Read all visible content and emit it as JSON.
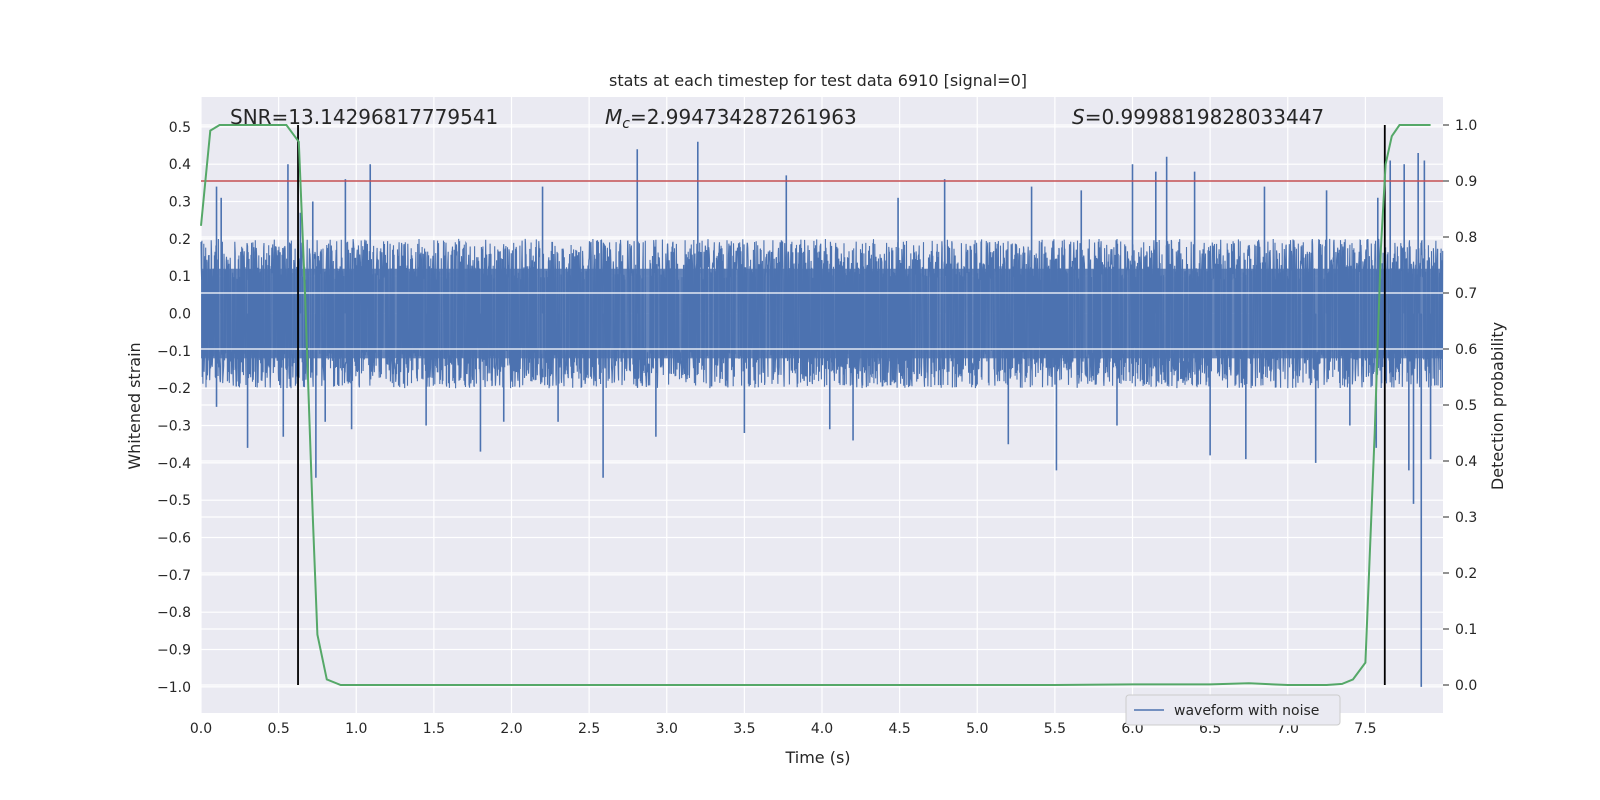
{
  "chart_data": {
    "type": "line",
    "title": "stats at each timestep for test data 6910 [signal=0]",
    "xlabel": "Time (s)",
    "ylabel": "Whitened strain",
    "y2label": "Detection probability",
    "xlim": [
      0.0,
      8.0
    ],
    "ylim": [
      -1.07,
      0.58
    ],
    "y2lim": [
      -0.05,
      1.05
    ],
    "xticks": [
      "0.0",
      "0.5",
      "1.0",
      "1.5",
      "2.0",
      "2.5",
      "3.0",
      "3.5",
      "4.0",
      "4.5",
      "5.0",
      "5.5",
      "6.0",
      "6.5",
      "7.0",
      "7.5"
    ],
    "yticks": [
      "0.5",
      "0.4",
      "0.3",
      "0.2",
      "0.1",
      "0.0",
      "−0.1",
      "−0.2",
      "−0.3",
      "−0.4",
      "−0.5",
      "−0.6",
      "−0.7",
      "−0.8",
      "−0.9",
      "−1.0"
    ],
    "y2ticks": [
      "1.0",
      "0.9",
      "0.8",
      "0.7",
      "0.6",
      "0.5",
      "0.4",
      "0.3",
      "0.2",
      "0.1",
      "0.0"
    ],
    "grid": true,
    "legend": {
      "placement": "lower-right",
      "entries": [
        "waveform with noise"
      ]
    },
    "annotations": {
      "snr": "SNR=13.14296817779541",
      "mc_symbol": "M",
      "mc_sub": "c",
      "mc_value": "=2.994734287261963",
      "s_symbol": "S",
      "s_value": "=0.9998819828033447"
    },
    "threshold": {
      "y2": 0.9,
      "color": "#c44e52"
    },
    "vlines": [
      0.625,
      7.625
    ],
    "colors": {
      "waveform": "#4c72b0",
      "probability": "#55a868",
      "vline": "#000000",
      "background": "#eaeaf2"
    },
    "waveform": {
      "name": "waveform with noise",
      "core_amplitude": 0.2,
      "spikes": [
        {
          "x": 0.1,
          "y": 0.34
        },
        {
          "x": 0.13,
          "y": 0.31
        },
        {
          "x": 0.1,
          "y": -0.25
        },
        {
          "x": 0.3,
          "y": -0.36
        },
        {
          "x": 0.56,
          "y": 0.4
        },
        {
          "x": 0.53,
          "y": -0.33
        },
        {
          "x": 0.64,
          "y": 0.27
        },
        {
          "x": 0.74,
          "y": -0.44
        },
        {
          "x": 0.72,
          "y": 0.3
        },
        {
          "x": 0.8,
          "y": -0.29
        },
        {
          "x": 0.93,
          "y": 0.36
        },
        {
          "x": 0.97,
          "y": -0.31
        },
        {
          "x": 1.09,
          "y": 0.4
        },
        {
          "x": 1.45,
          "y": -0.3
        },
        {
          "x": 1.8,
          "y": -0.37
        },
        {
          "x": 1.95,
          "y": -0.29
        },
        {
          "x": 2.2,
          "y": 0.34
        },
        {
          "x": 2.3,
          "y": -0.29
        },
        {
          "x": 2.59,
          "y": -0.44
        },
        {
          "x": 2.81,
          "y": 0.44
        },
        {
          "x": 2.93,
          "y": -0.33
        },
        {
          "x": 3.2,
          "y": 0.46
        },
        {
          "x": 3.5,
          "y": -0.32
        },
        {
          "x": 3.77,
          "y": 0.37
        },
        {
          "x": 4.05,
          "y": -0.31
        },
        {
          "x": 4.2,
          "y": -0.34
        },
        {
          "x": 4.49,
          "y": 0.31
        },
        {
          "x": 4.79,
          "y": 0.36
        },
        {
          "x": 5.2,
          "y": -0.35
        },
        {
          "x": 5.35,
          "y": 0.34
        },
        {
          "x": 5.51,
          "y": -0.42
        },
        {
          "x": 5.67,
          "y": 0.33
        },
        {
          "x": 5.9,
          "y": -0.3
        },
        {
          "x": 6.0,
          "y": 0.4
        },
        {
          "x": 6.15,
          "y": 0.38
        },
        {
          "x": 6.22,
          "y": 0.42
        },
        {
          "x": 6.4,
          "y": 0.38
        },
        {
          "x": 6.5,
          "y": -0.38
        },
        {
          "x": 6.73,
          "y": -0.39
        },
        {
          "x": 6.85,
          "y": 0.34
        },
        {
          "x": 7.18,
          "y": -0.4
        },
        {
          "x": 7.25,
          "y": 0.33
        },
        {
          "x": 7.4,
          "y": -0.3
        },
        {
          "x": 7.58,
          "y": 0.31
        },
        {
          "x": 7.57,
          "y": -0.36
        },
        {
          "x": 7.66,
          "y": 0.41
        },
        {
          "x": 7.75,
          "y": 0.4
        },
        {
          "x": 7.78,
          "y": -0.42
        },
        {
          "x": 7.81,
          "y": -0.51
        },
        {
          "x": 7.84,
          "y": 0.43
        },
        {
          "x": 7.86,
          "y": -1.0
        },
        {
          "x": 7.88,
          "y": 0.41
        },
        {
          "x": 7.92,
          "y": -0.39
        }
      ]
    },
    "probability": {
      "name": "Detection probability",
      "x": [
        0.0,
        0.06,
        0.12,
        0.25,
        0.4,
        0.55,
        0.63,
        0.67,
        0.72,
        0.75,
        0.81,
        0.9,
        1.0,
        2.0,
        3.0,
        4.0,
        5.0,
        5.5,
        6.0,
        6.5,
        6.75,
        7.0,
        7.25,
        7.35,
        7.42,
        7.5,
        7.56,
        7.6,
        7.63,
        7.67,
        7.72,
        7.78,
        7.85,
        7.92
      ],
      "y": [
        0.82,
        0.99,
        1.0,
        1.0,
        1.0,
        1.0,
        0.97,
        0.7,
        0.3,
        0.09,
        0.01,
        0.0,
        0.0,
        0.0,
        0.0,
        0.0,
        0.0,
        0.0,
        0.001,
        0.001,
        0.003,
        0.0,
        0.0,
        0.002,
        0.01,
        0.04,
        0.45,
        0.78,
        0.93,
        0.98,
        1.0,
        1.0,
        1.0,
        1.0
      ]
    }
  }
}
